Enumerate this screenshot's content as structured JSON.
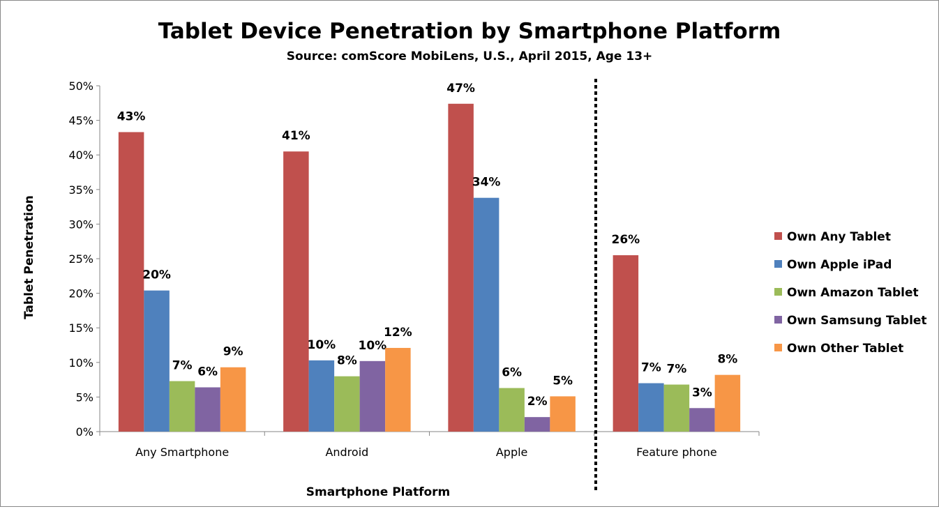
{
  "chart_data": {
    "type": "bar",
    "title": "Tablet Device Penetration by Smartphone Platform",
    "subtitle": "Source: comScore MobiLens, U.S., April 2015, Age 13+",
    "xlabel": "Smartphone Platform",
    "ylabel": "Tablet Penetration",
    "ylim": [
      0,
      50
    ],
    "yticks": [
      "0%",
      "5%",
      "10%",
      "15%",
      "20%",
      "25%",
      "30%",
      "35%",
      "40%",
      "45%",
      "50%"
    ],
    "grid": false,
    "legend": "right",
    "categories": [
      "Any Smartphone",
      "Android",
      "Apple",
      "Feature phone"
    ],
    "separator_before_category": "Feature phone",
    "series": [
      {
        "name": "Own Any Tablet",
        "color": "#C0504D",
        "values": [
          43.3,
          40.5,
          47.4,
          25.5
        ],
        "labels": [
          "43%",
          "41%",
          "47%",
          "26%"
        ]
      },
      {
        "name": "Own Apple iPad",
        "color": "#4F81BD",
        "values": [
          20.4,
          10.3,
          33.8,
          7.0
        ],
        "labels": [
          "20%",
          "10%",
          "34%",
          "7%"
        ]
      },
      {
        "name": "Own Amazon Tablet",
        "color": "#9BBB59",
        "values": [
          7.3,
          8.0,
          6.3,
          6.8
        ],
        "labels": [
          "7%",
          "8%",
          "6%",
          "7%"
        ]
      },
      {
        "name": "Own Samsung Tablet",
        "color": "#8064A2",
        "values": [
          6.4,
          10.2,
          2.1,
          3.4
        ],
        "labels": [
          "6%",
          "10%",
          "2%",
          "3%"
        ]
      },
      {
        "name": "Own Other Tablet",
        "color": "#F79646",
        "values": [
          9.3,
          12.1,
          5.1,
          8.2
        ],
        "labels": [
          "9%",
          "12%",
          "5%",
          "8%"
        ]
      }
    ]
  }
}
